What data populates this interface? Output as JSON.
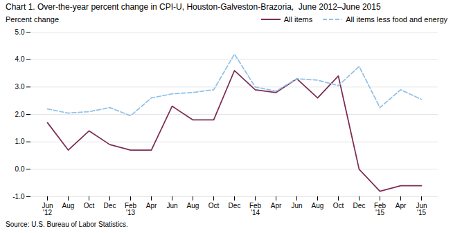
{
  "chart_data": {
    "type": "line",
    "title": "Chart 1. Over-the-year percent change in CPI-U, Houston-Galveston-Brazoria,  June 2012–June 2015",
    "ylabel": "Percent change",
    "source": "Source: U.S. Bureau of Labor Statistics.",
    "categories": [
      "Jun\n'12",
      "Aug",
      "Oct",
      "Dec",
      "Feb\n'13",
      "Apr",
      "Jun",
      "Aug",
      "Oct",
      "Dec",
      "Feb\n'14",
      "Apr",
      "Jun",
      "Aug",
      "Oct",
      "Dec",
      "Feb\n'15",
      "Apr",
      "Jun\n'15"
    ],
    "series": [
      {
        "name": "All items",
        "color": "#7B2D52",
        "line_style": "solid",
        "values": [
          1.7,
          0.7,
          1.4,
          0.9,
          0.7,
          0.7,
          2.3,
          1.8,
          1.8,
          3.6,
          2.9,
          2.8,
          3.3,
          2.6,
          3.4,
          0.0,
          -0.8,
          -0.6,
          -0.6
        ]
      },
      {
        "name": "All items less food and energy",
        "color": "#91C0E8",
        "line_style": "dashed",
        "values": [
          2.2,
          2.05,
          2.1,
          2.25,
          1.95,
          2.6,
          2.75,
          2.8,
          2.9,
          4.2,
          3.0,
          2.85,
          3.3,
          3.25,
          3.05,
          3.75,
          2.25,
          2.9,
          2.55
        ]
      }
    ],
    "ylim": [
      -1.0,
      5.0
    ],
    "yticks": [
      {
        "value": -1.0,
        "label": "-1.0"
      },
      {
        "value": 0.0,
        "label": "0.0"
      },
      {
        "value": 1.0,
        "label": "1.0"
      },
      {
        "value": 2.0,
        "label": "2.0"
      },
      {
        "value": 3.0,
        "label": "3.0"
      },
      {
        "value": 4.0,
        "label": "4.0"
      },
      {
        "value": 5.0,
        "label": "5.0"
      }
    ],
    "grid": true,
    "legend": "upper right"
  }
}
